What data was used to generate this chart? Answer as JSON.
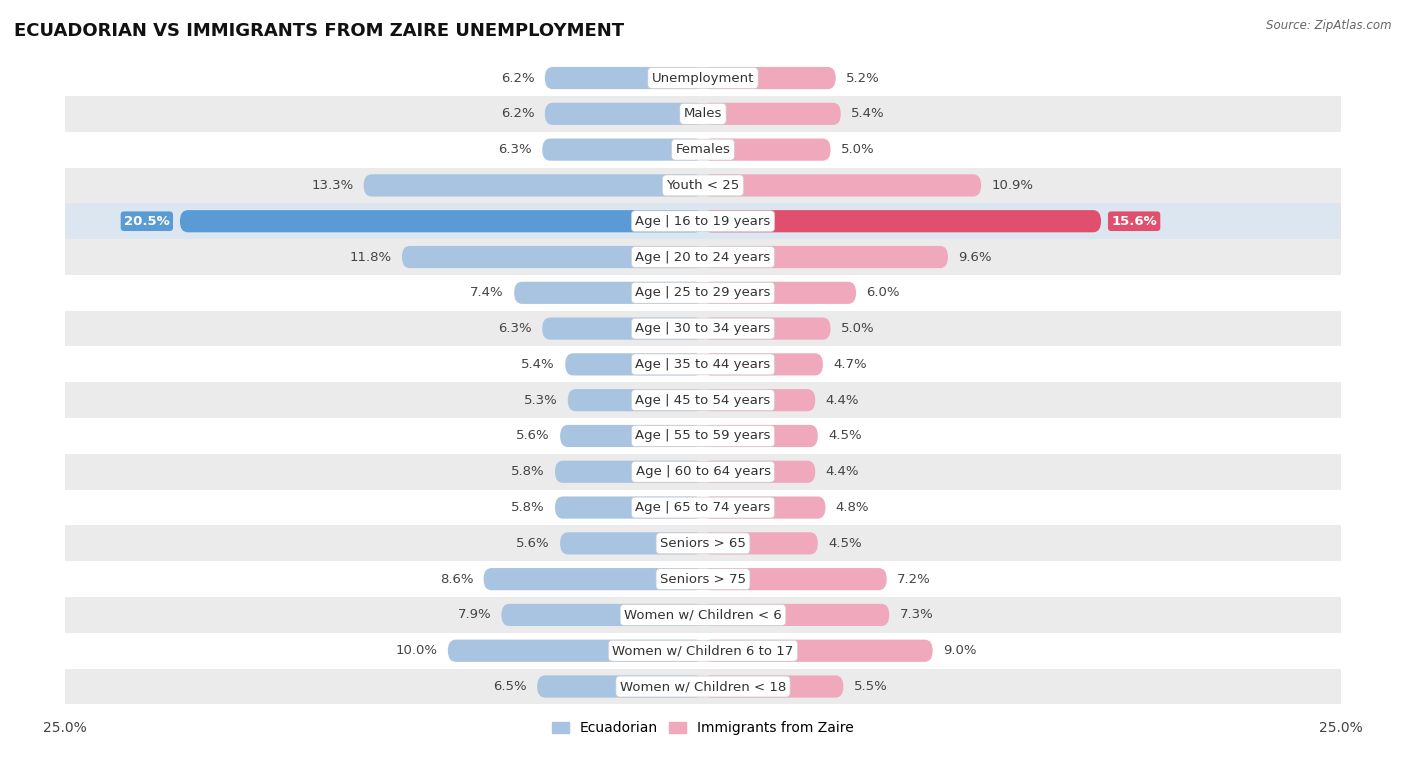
{
  "title": "ECUADORIAN VS IMMIGRANTS FROM ZAIRE UNEMPLOYMENT",
  "source": "Source: ZipAtlas.com",
  "categories": [
    "Unemployment",
    "Males",
    "Females",
    "Youth < 25",
    "Age | 16 to 19 years",
    "Age | 20 to 24 years",
    "Age | 25 to 29 years",
    "Age | 30 to 34 years",
    "Age | 35 to 44 years",
    "Age | 45 to 54 years",
    "Age | 55 to 59 years",
    "Age | 60 to 64 years",
    "Age | 65 to 74 years",
    "Seniors > 65",
    "Seniors > 75",
    "Women w/ Children < 6",
    "Women w/ Children 6 to 17",
    "Women w/ Children < 18"
  ],
  "ecuadorian": [
    6.2,
    6.2,
    6.3,
    13.3,
    20.5,
    11.8,
    7.4,
    6.3,
    5.4,
    5.3,
    5.6,
    5.8,
    5.8,
    5.6,
    8.6,
    7.9,
    10.0,
    6.5
  ],
  "zaire": [
    5.2,
    5.4,
    5.0,
    10.9,
    15.6,
    9.6,
    6.0,
    5.0,
    4.7,
    4.4,
    4.5,
    4.4,
    4.8,
    4.5,
    7.2,
    7.3,
    9.0,
    5.5
  ],
  "ecuadorian_color": "#a8c4e0",
  "zaire_color": "#f0a8bc",
  "highlight_ecuadorian_color": "#5b9bd5",
  "highlight_zaire_color": "#e0506e",
  "axis_limit": 25.0,
  "bar_height": 0.62,
  "row_colors": [
    "#ffffff",
    "#ebebeb"
  ],
  "highlight_row_color": "#dce6f0",
  "legend_ecuadorian": "Ecuadorian",
  "legend_zaire": "Immigrants from Zaire",
  "label_fontsize": 9.5,
  "category_fontsize": 9.5,
  "title_fontsize": 13,
  "highlight_idx": 4
}
